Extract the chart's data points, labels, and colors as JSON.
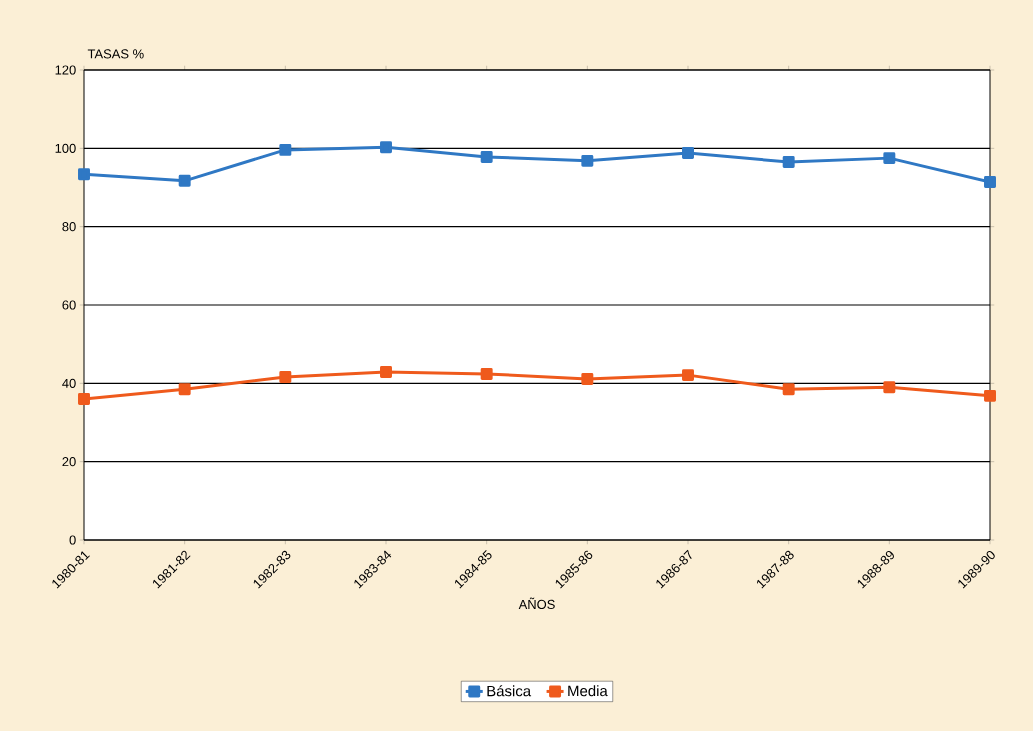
{
  "chart_data": {
    "type": "line",
    "ylabel": "TASAS %",
    "xlabel": "AÑOS",
    "categories": [
      "1980-81",
      "1981-82",
      "1982-83",
      "1983-84",
      "1984-85",
      "1985-86",
      "1986-87",
      "1987-88",
      "1988-89",
      "1989-90"
    ],
    "series": [
      {
        "name": "Básica",
        "color": "#2f78c4",
        "values": [
          93.4,
          91.7,
          99.6,
          100.3,
          97.8,
          96.8,
          98.8,
          96.5,
          97.5,
          91.4
        ]
      },
      {
        "name": "Media",
        "color": "#ef5a1c",
        "values": [
          36.0,
          38.5,
          41.6,
          42.9,
          42.4,
          41.1,
          42.1,
          38.5,
          39.0,
          36.8
        ]
      }
    ],
    "ylim": [
      0,
      120
    ],
    "yticks": [
      0,
      20,
      40,
      60,
      80,
      100,
      120
    ],
    "grid": "y",
    "legend": "bottom",
    "marker": "square",
    "line_style": "solid"
  }
}
